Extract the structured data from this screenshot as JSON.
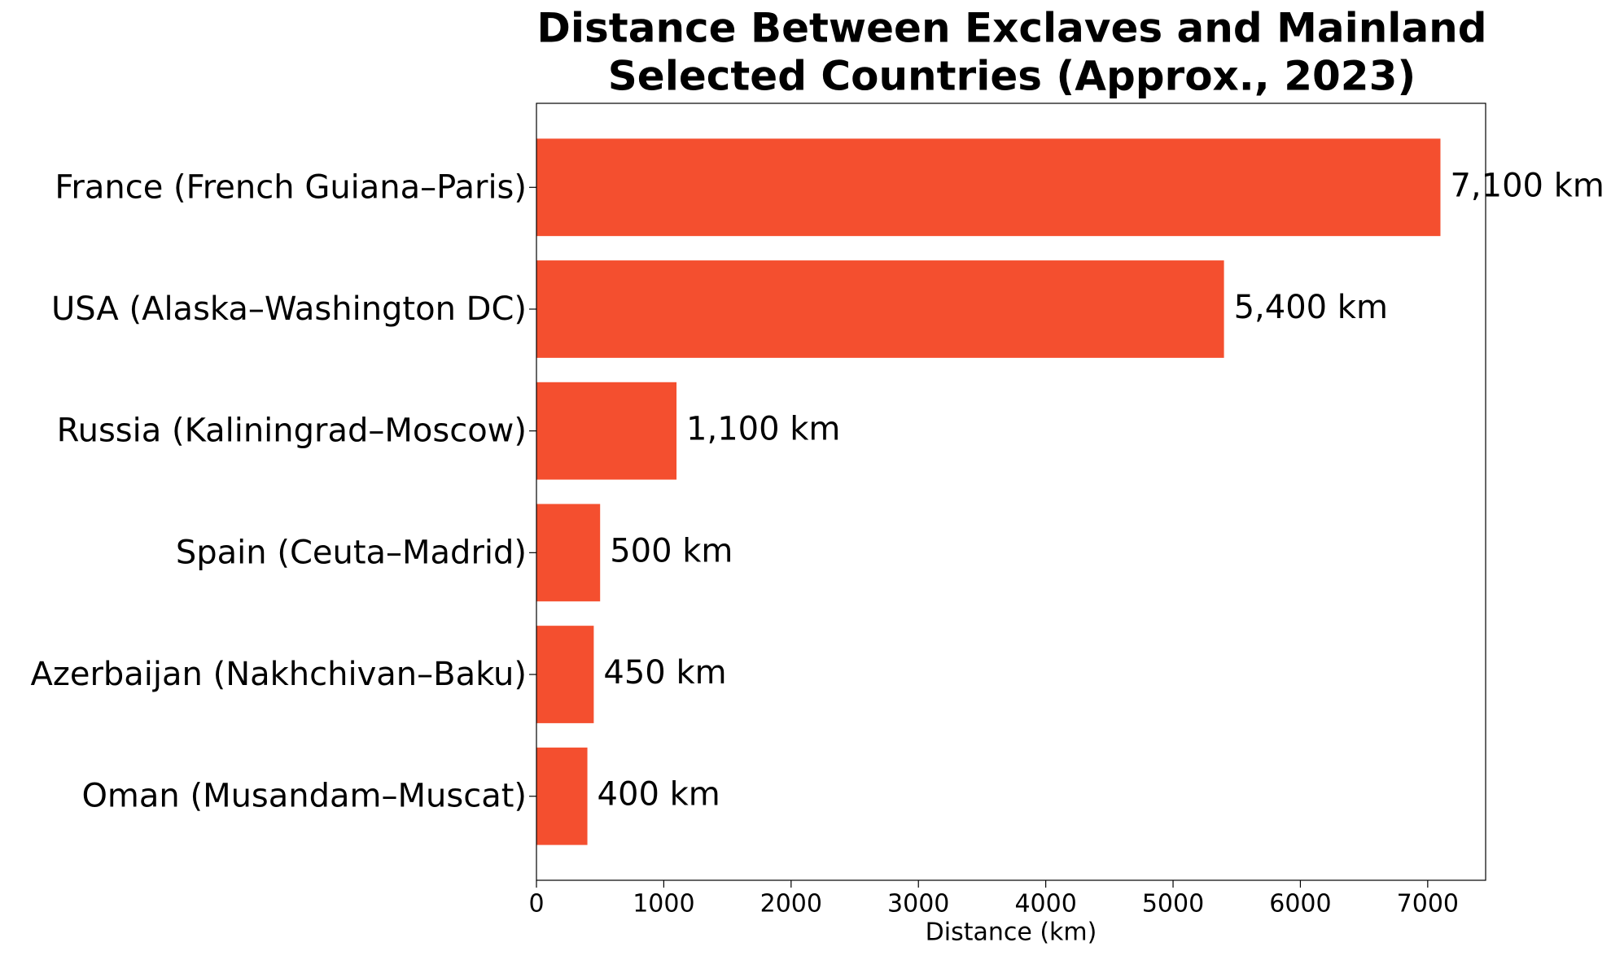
{
  "chart_data": {
    "type": "barh",
    "title": [
      "Distance Between Exclaves and Mainland",
      "Selected Countries (Approx., 2023)"
    ],
    "xlabel": "Distance (km)",
    "categories": [
      "France (French Guiana–Paris)",
      "USA (Alaska–Washington DC)",
      "Russia (Kaliningrad–Moscow)",
      "Spain (Ceuta–Madrid)",
      "Azerbaijan (Nakhchivan–Baku)",
      "Oman (Musandam–Muscat)"
    ],
    "values": [
      7100,
      5400,
      1100,
      500,
      450,
      400
    ],
    "value_labels": [
      "7,100 km",
      "5,400 km",
      "1,100 km",
      "500 km",
      "450 km",
      "400 km"
    ],
    "color": "#f44f2f",
    "xlim": [
      0,
      7455
    ],
    "xticks": [
      0,
      1000,
      2000,
      3000,
      4000,
      5000,
      6000,
      7000
    ],
    "grid": false
  }
}
